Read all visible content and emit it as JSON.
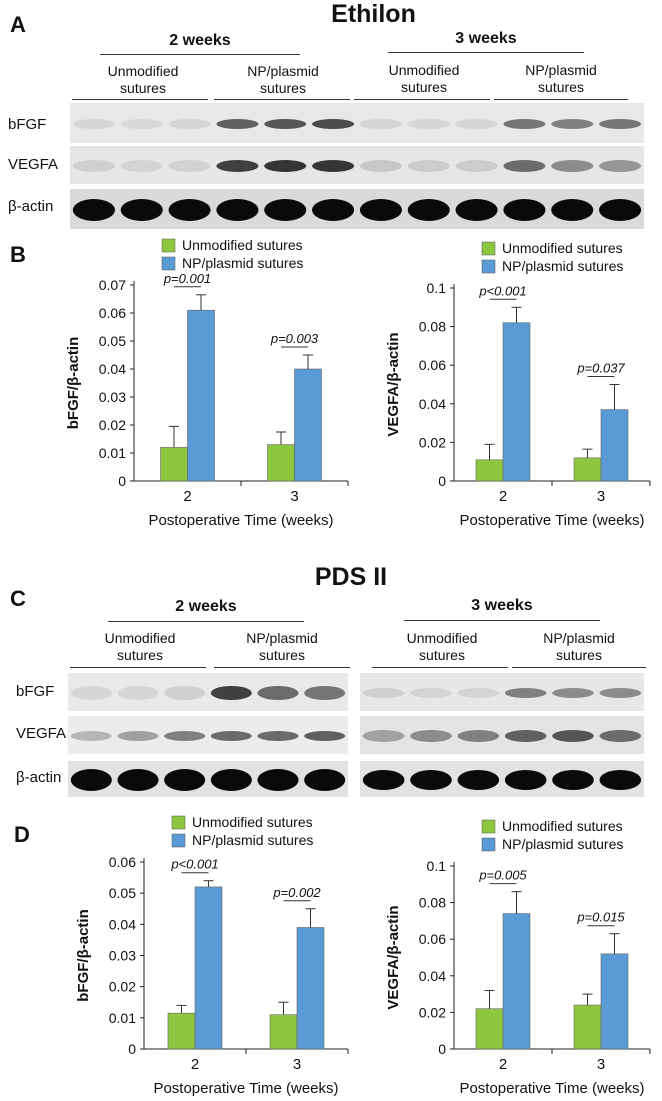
{
  "panels": {
    "a": {
      "letter": "A",
      "title": "Ethilon"
    },
    "b": {
      "letter": "B"
    },
    "c": {
      "letter": "C",
      "title": "PDS II"
    },
    "d": {
      "letter": "D"
    }
  },
  "blot_labels": {
    "week2": "2  weeks",
    "week3": "3  weeks",
    "unmodified_line1": "Unmodified",
    "unmodified_line2": "sutures",
    "np_line1": "NP/plasmid",
    "np_line2": "sutures",
    "bfgf": "bFGF",
    "vegfa": "VEGFA",
    "bactin": "β-actin"
  },
  "blots": {
    "ethilon": {
      "bfgf": [
        0.05,
        0.04,
        0.06,
        0.6,
        0.65,
        0.7,
        0.06,
        0.05,
        0.05,
        0.5,
        0.45,
        0.5
      ],
      "vegfa": [
        0.08,
        0.06,
        0.07,
        0.75,
        0.8,
        0.8,
        0.12,
        0.1,
        0.1,
        0.55,
        0.4,
        0.35
      ],
      "bactin": [
        1,
        1,
        1,
        1,
        1,
        1,
        1,
        1,
        1,
        1,
        1,
        1
      ]
    },
    "pds": {
      "bfgf": [
        0.05,
        0.05,
        0.08,
        0.75,
        0.55,
        0.5,
        0.08,
        0.06,
        0.06,
        0.45,
        0.4,
        0.4
      ],
      "vegfa": [
        0.2,
        0.3,
        0.45,
        0.55,
        0.55,
        0.6,
        0.3,
        0.4,
        0.45,
        0.6,
        0.65,
        0.55
      ],
      "bactin": [
        1,
        1,
        1,
        1,
        1,
        1,
        1,
        1,
        1,
        1,
        1,
        1
      ]
    }
  },
  "colors": {
    "unmodified": "#8dc63f",
    "np": "#5b9bd5"
  },
  "chart_data": [
    {
      "id": "B-left",
      "type": "bar",
      "xlabel": "Postoperative Time (weeks)",
      "ylabel": "bFGF/β-actin",
      "categories": [
        "2",
        "3"
      ],
      "ylim": [
        0,
        0.07
      ],
      "yticks": [
        "0",
        "0.01",
        "0.02",
        "0.03",
        "0.04",
        "0.05",
        "0.06",
        "0.07"
      ],
      "series": [
        {
          "name": "Unmodified sutures",
          "values": [
            0.012,
            0.013
          ],
          "errors": [
            0.0075,
            0.0045
          ]
        },
        {
          "name": "NP/plasmid sutures",
          "values": [
            0.061,
            0.04
          ],
          "errors": [
            0.0055,
            0.005
          ]
        }
      ],
      "annotations": [
        "p=0.001",
        "p=0.003"
      ]
    },
    {
      "id": "B-right",
      "type": "bar",
      "xlabel": "Postoperative Time (weeks)",
      "ylabel": "VEGFA/β-actin",
      "categories": [
        "2",
        "3"
      ],
      "ylim": [
        0,
        0.1
      ],
      "yticks": [
        "0",
        "0.02",
        "0.04",
        "0.06",
        "0.08",
        "0.1"
      ],
      "series": [
        {
          "name": "Unmodified sutures",
          "values": [
            0.011,
            0.012
          ],
          "errors": [
            0.008,
            0.0045
          ]
        },
        {
          "name": "NP/plasmid sutures",
          "values": [
            0.082,
            0.037
          ],
          "errors": [
            0.008,
            0.013
          ]
        }
      ],
      "annotations": [
        "p<0.001",
        "p=0.037"
      ]
    },
    {
      "id": "D-left",
      "type": "bar",
      "xlabel": "Postoperative Time (weeks)",
      "ylabel": "bFGF/β-actin",
      "categories": [
        "2",
        "3"
      ],
      "ylim": [
        0,
        0.06
      ],
      "yticks": [
        "0",
        "0.01",
        "0.02",
        "0.03",
        "0.04",
        "0.05",
        "0.06"
      ],
      "series": [
        {
          "name": "Unmodified sutures",
          "values": [
            0.0115,
            0.011
          ],
          "errors": [
            0.0025,
            0.004
          ]
        },
        {
          "name": "NP/plasmid sutures",
          "values": [
            0.052,
            0.039
          ],
          "errors": [
            0.002,
            0.006
          ]
        }
      ],
      "annotations": [
        "p<0.001",
        "p=0.002"
      ]
    },
    {
      "id": "D-right",
      "type": "bar",
      "xlabel": "Postoperative Time (weeks)",
      "ylabel": "VEGFA/β-actin",
      "categories": [
        "2",
        "3"
      ],
      "ylim": [
        0,
        0.1
      ],
      "yticks": [
        "0",
        "0.02",
        "0.04",
        "0.06",
        "0.08",
        "0.1"
      ],
      "series": [
        {
          "name": "Unmodified sutures",
          "values": [
            0.022,
            0.024
          ],
          "errors": [
            0.01,
            0.006
          ]
        },
        {
          "name": "NP/plasmid sutures",
          "values": [
            0.074,
            0.052
          ],
          "errors": [
            0.012,
            0.011
          ]
        }
      ],
      "annotations": [
        "p=0.005",
        "p=0.015"
      ]
    }
  ]
}
